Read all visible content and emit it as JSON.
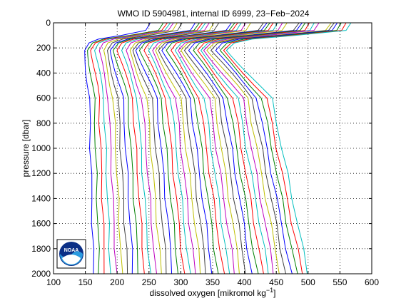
{
  "chart_data": {
    "type": "line",
    "title": "WMO ID 5904981, internal ID 6999, 23−Feb−2024",
    "xlabel_main": "dissolved oxygen [mikromol kg",
    "xlabel_sup": "−1",
    "xlabel_end": "]",
    "ylabel": "pressure [dbar]",
    "xlim": [
      100,
      600
    ],
    "ylim": [
      0,
      2000
    ],
    "y_reversed": true,
    "grid": "dotted",
    "xticks": [
      100,
      150,
      200,
      250,
      300,
      350,
      400,
      450,
      500,
      550,
      600
    ],
    "yticks": [
      0,
      200,
      400,
      600,
      800,
      1000,
      1200,
      1400,
      1600,
      1800,
      2000
    ],
    "logo": "NOAA",
    "colors": [
      "#0000ff",
      "#008000",
      "#ff0000",
      "#00bfbf",
      "#bf00bf",
      "#bfbf00",
      "#404040"
    ],
    "profiles": {
      "count": 39,
      "pressure": [
        0,
        20,
        60,
        100,
        130,
        160,
        190,
        220,
        260,
        320,
        400,
        500,
        600,
        800,
        1000,
        1200,
        1400,
        1600,
        1800,
        2000
      ],
      "surface_range": [
        258,
        570
      ],
      "minimum_range": [
        148,
        372
      ],
      "deep_range": [
        163,
        500
      ]
    }
  }
}
